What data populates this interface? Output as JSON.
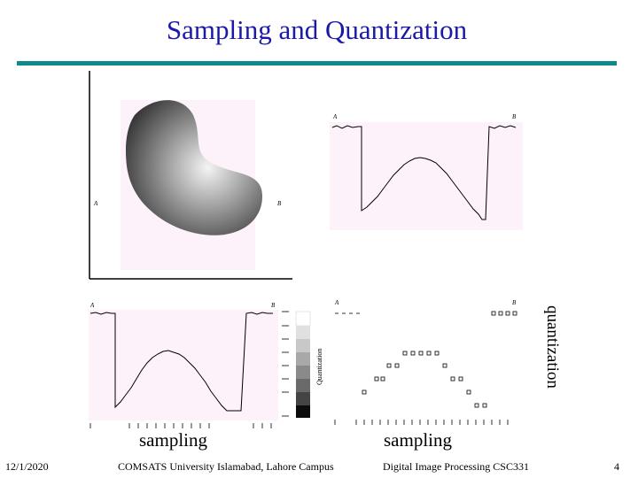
{
  "slide": {
    "title": "Sampling and Quantization",
    "labels": {
      "a": "A",
      "b": "B"
    },
    "captions": {
      "sampling_left": "sampling",
      "sampling_right": "sampling",
      "quantization": "quantization",
      "quantization_scale": "Quantization"
    },
    "footer": {
      "date": "12/1/2020",
      "institution": "COMSATS University Islamabad, Lahore Campus",
      "course": "Digital Image Processing CSC331",
      "page": "4"
    }
  },
  "colors": {
    "title": "#1a1aa6",
    "rule": "#0f8a8a",
    "panel_bg": "#fdf2fa"
  }
}
